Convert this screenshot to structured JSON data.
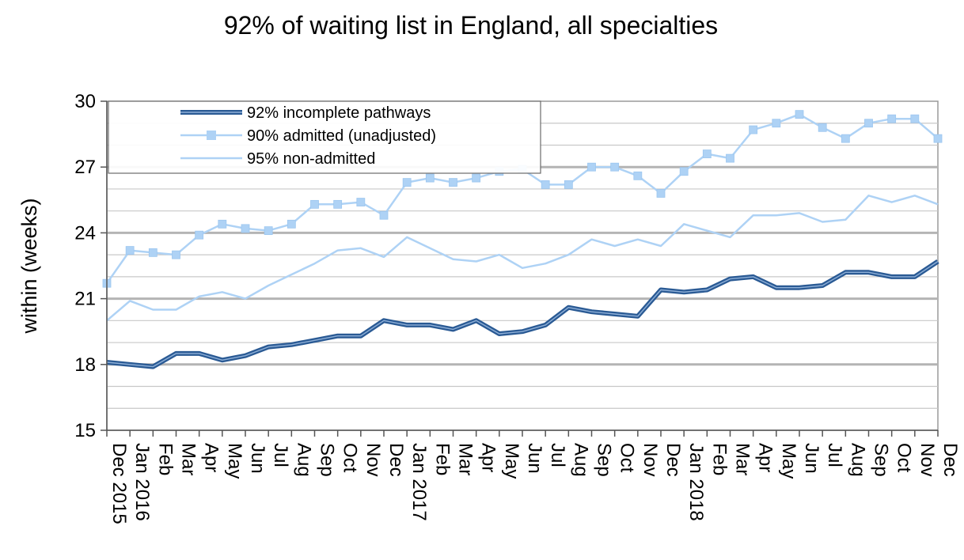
{
  "chart_data": {
    "type": "line",
    "title": "92% of waiting list in England, all specialties",
    "ylabel": "within (weeks)",
    "xlabel": "",
    "ylim": [
      15,
      30
    ],
    "yticks": [
      15,
      18,
      21,
      24,
      27,
      30
    ],
    "grid": true,
    "legend_position": "top-left",
    "categories": [
      "Dec 2015",
      "Jan 2016",
      "Feb",
      "Mar",
      "Apr",
      "May",
      "Jun",
      "Jul",
      "Aug",
      "Sep",
      "Oct",
      "Nov",
      "Dec",
      "Jan 2017",
      "Feb",
      "Mar",
      "Apr",
      "May",
      "Jun",
      "Jul",
      "Aug",
      "Sep",
      "Oct",
      "Nov",
      "Dec",
      "Jan 2018",
      "Feb",
      "Mar",
      "Apr",
      "May",
      "Jun",
      "Jul",
      "Aug",
      "Sep",
      "Oct",
      "Nov",
      "Dec"
    ],
    "series": [
      {
        "name": "92% incomplete pathways",
        "color": "#2a5a94",
        "values": [
          18.1,
          18.0,
          17.9,
          18.5,
          18.5,
          18.2,
          18.4,
          18.8,
          18.9,
          19.1,
          19.3,
          19.3,
          20.0,
          19.8,
          19.8,
          19.6,
          20.0,
          19.4,
          19.5,
          19.8,
          20.6,
          20.4,
          20.3,
          20.2,
          21.4,
          21.3,
          21.4,
          21.9,
          22.0,
          21.5,
          21.5,
          21.6,
          22.2,
          22.2,
          22.0,
          22.0,
          22.7
        ]
      },
      {
        "name": "90% admitted (unadjusted)",
        "color": "#aed2f5",
        "values": [
          21.7,
          23.2,
          23.1,
          23.0,
          23.9,
          24.4,
          24.2,
          24.1,
          24.4,
          25.3,
          25.3,
          25.4,
          24.8,
          26.3,
          26.5,
          26.3,
          26.5,
          26.8,
          26.9,
          26.2,
          26.2,
          27.0,
          27.0,
          26.6,
          25.8,
          26.8,
          27.6,
          27.4,
          28.7,
          29.0,
          29.4,
          28.8,
          28.3,
          29.0,
          29.2,
          29.2,
          28.3
        ]
      },
      {
        "name": "95% non-admitted",
        "color": "#aed2f5",
        "values": [
          20.0,
          20.9,
          20.5,
          20.5,
          21.1,
          21.3,
          21.0,
          21.6,
          22.1,
          22.6,
          23.2,
          23.3,
          22.9,
          23.8,
          23.3,
          22.8,
          22.7,
          23.0,
          22.4,
          22.6,
          23.0,
          23.7,
          23.4,
          23.7,
          23.4,
          24.4,
          24.1,
          23.8,
          24.8,
          24.8,
          24.9,
          24.5,
          24.6,
          25.7,
          25.4,
          25.7,
          25.3
        ]
      }
    ]
  }
}
